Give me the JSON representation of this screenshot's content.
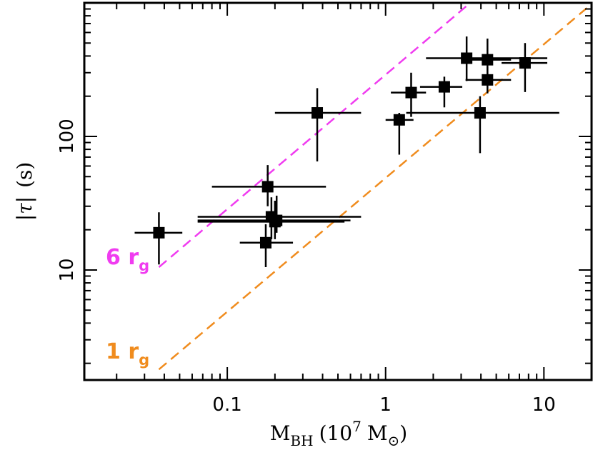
{
  "chart_data": {
    "type": "scatter",
    "title": "",
    "xscale": "log",
    "yscale": "log",
    "xlim": [
      0.0125,
      20
    ],
    "ylim": [
      1.5,
      1000
    ],
    "xlabel": {
      "main": "M",
      "sub": "BH",
      "paren_open": "(10",
      "sup": "7",
      "unit": "M",
      "unit_symbol": "⊙",
      "paren_close": ")"
    },
    "ylabel": {
      "left_bar": "|",
      "tau": "τ",
      "right_bar": "|",
      "unit": "(s)"
    },
    "x_ticks": [
      {
        "value": 0.1,
        "label": "0.1"
      },
      {
        "value": 1,
        "label": "1"
      },
      {
        "value": 10,
        "label": "10"
      }
    ],
    "y_ticks": [
      {
        "value": 10,
        "label": "10"
      },
      {
        "value": 100,
        "label": "100"
      }
    ],
    "points": [
      {
        "x": 0.037,
        "xlo": 0.026,
        "xhi": 0.052,
        "y": 19,
        "ylo": 11,
        "yhi": 27
      },
      {
        "x": 0.18,
        "xlo": 0.08,
        "xhi": 0.42,
        "y": 42,
        "ylo": 30,
        "yhi": 61
      },
      {
        "x": 0.19,
        "xlo": 0.065,
        "xhi": 0.7,
        "y": 25,
        "ylo": 17,
        "yhi": 35
      },
      {
        "x": 0.2,
        "xlo": 0.065,
        "xhi": 0.55,
        "y": 23,
        "ylo": 17,
        "yhi": 33
      },
      {
        "x": 0.205,
        "xlo": 0.065,
        "xhi": 0.6,
        "y": 23.5,
        "ylo": 19,
        "yhi": 36
      },
      {
        "x": 0.175,
        "xlo": 0.12,
        "xhi": 0.26,
        "y": 16,
        "ylo": 10.5,
        "yhi": 22
      },
      {
        "x": 0.37,
        "xlo": 0.2,
        "xhi": 0.7,
        "y": 150,
        "ylo": 65,
        "yhi": 230
      },
      {
        "x": 1.22,
        "xlo": 1.0,
        "xhi": 1.5,
        "y": 133,
        "ylo": 73,
        "yhi": 150
      },
      {
        "x": 1.45,
        "xlo": 1.08,
        "xhi": 1.8,
        "y": 213,
        "ylo": 140,
        "yhi": 300
      },
      {
        "x": 2.35,
        "xlo": 1.65,
        "xhi": 3.05,
        "y": 235,
        "ylo": 165,
        "yhi": 280
      },
      {
        "x": 3.25,
        "xlo": 1.8,
        "xhi": 10.5,
        "y": 385,
        "ylo": 260,
        "yhi": 560
      },
      {
        "x": 4.4,
        "xlo": 3.0,
        "xhi": 6.2,
        "y": 375,
        "ylo": 265,
        "yhi": 540
      },
      {
        "x": 4.4,
        "xlo": 3.2,
        "xhi": 6.2,
        "y": 265,
        "ylo": 210,
        "yhi": 330
      },
      {
        "x": 3.95,
        "xlo": 1.35,
        "xhi": 12.5,
        "y": 150,
        "ylo": 75,
        "yhi": 200
      },
      {
        "x": 7.6,
        "xlo": 5.4,
        "xhi": 10.5,
        "y": 355,
        "ylo": 215,
        "yhi": 500
      }
    ],
    "lines": [
      {
        "label_main": "6 r",
        "label_sub": "g",
        "color": "#f03cf0",
        "x_start": 0.037,
        "y_start": 10.5,
        "coeff": 295
      },
      {
        "label_main": "1 r",
        "label_sub": "g",
        "color": "#f08c1e",
        "x_start": 0.037,
        "y_start": 1.8,
        "coeff": 49
      }
    ]
  }
}
